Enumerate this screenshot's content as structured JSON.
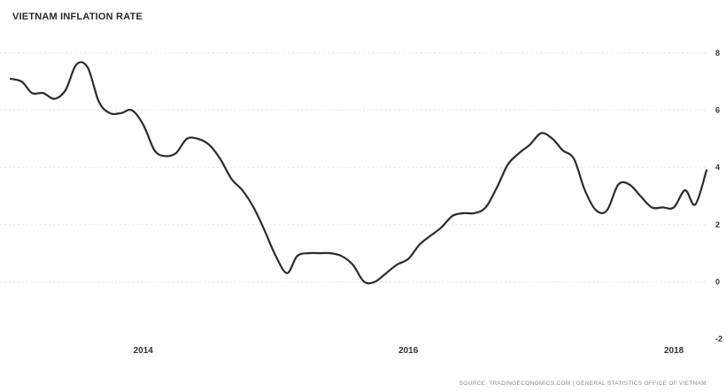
{
  "chart_data": {
    "type": "line",
    "title": "VIETNAM INFLATION RATE",
    "source": "SOURCE: TRADINGECONOMICS.COM | GENERAL STATISTICS OFFICE OF VIETNAM",
    "xlabel": "",
    "ylabel": "",
    "ylim": [
      -2,
      8
    ],
    "y_ticks": [
      "8",
      "6",
      "4",
      "2",
      "0",
      "-2"
    ],
    "x_ticks": [
      "2014",
      "2016",
      "2018"
    ],
    "grid": true,
    "y_axis_position": "right",
    "x": [
      "2013-01",
      "2013-02",
      "2013-03",
      "2013-04",
      "2013-05",
      "2013-06",
      "2013-07",
      "2013-08",
      "2013-09",
      "2013-10",
      "2013-11",
      "2013-12",
      "2014-01",
      "2014-02",
      "2014-03",
      "2014-04",
      "2014-05",
      "2014-06",
      "2014-07",
      "2014-08",
      "2014-09",
      "2014-10",
      "2014-11",
      "2014-12",
      "2015-01",
      "2015-02",
      "2015-03",
      "2015-04",
      "2015-05",
      "2015-06",
      "2015-07",
      "2015-08",
      "2015-09",
      "2015-10",
      "2015-11",
      "2015-12",
      "2016-01",
      "2016-02",
      "2016-03",
      "2016-04",
      "2016-05",
      "2016-06",
      "2016-07",
      "2016-08",
      "2016-09",
      "2016-10",
      "2016-11",
      "2016-12",
      "2017-01",
      "2017-02",
      "2017-03",
      "2017-04",
      "2017-05",
      "2017-06",
      "2017-07",
      "2017-08",
      "2017-09",
      "2017-10",
      "2017-11",
      "2017-12",
      "2018-01",
      "2018-02",
      "2018-03",
      "2018-04"
    ],
    "values": [
      7.1,
      7.0,
      6.6,
      6.6,
      6.4,
      6.7,
      7.6,
      7.5,
      6.3,
      5.9,
      5.9,
      6.0,
      5.5,
      4.6,
      4.4,
      4.5,
      5.0,
      5.0,
      4.8,
      4.3,
      3.6,
      3.2,
      2.6,
      1.8,
      0.9,
      0.3,
      0.9,
      1.0,
      1.0,
      1.0,
      0.9,
      0.6,
      0.0,
      0.0,
      0.3,
      0.6,
      0.8,
      1.3,
      1.6,
      1.9,
      2.3,
      2.4,
      2.4,
      2.6,
      3.3,
      4.1,
      4.5,
      4.8,
      5.2,
      5.0,
      4.6,
      4.3,
      3.2,
      2.5,
      2.5,
      3.4,
      3.4,
      3.0,
      2.6,
      2.6,
      2.6,
      3.2,
      2.7,
      3.9
    ]
  }
}
